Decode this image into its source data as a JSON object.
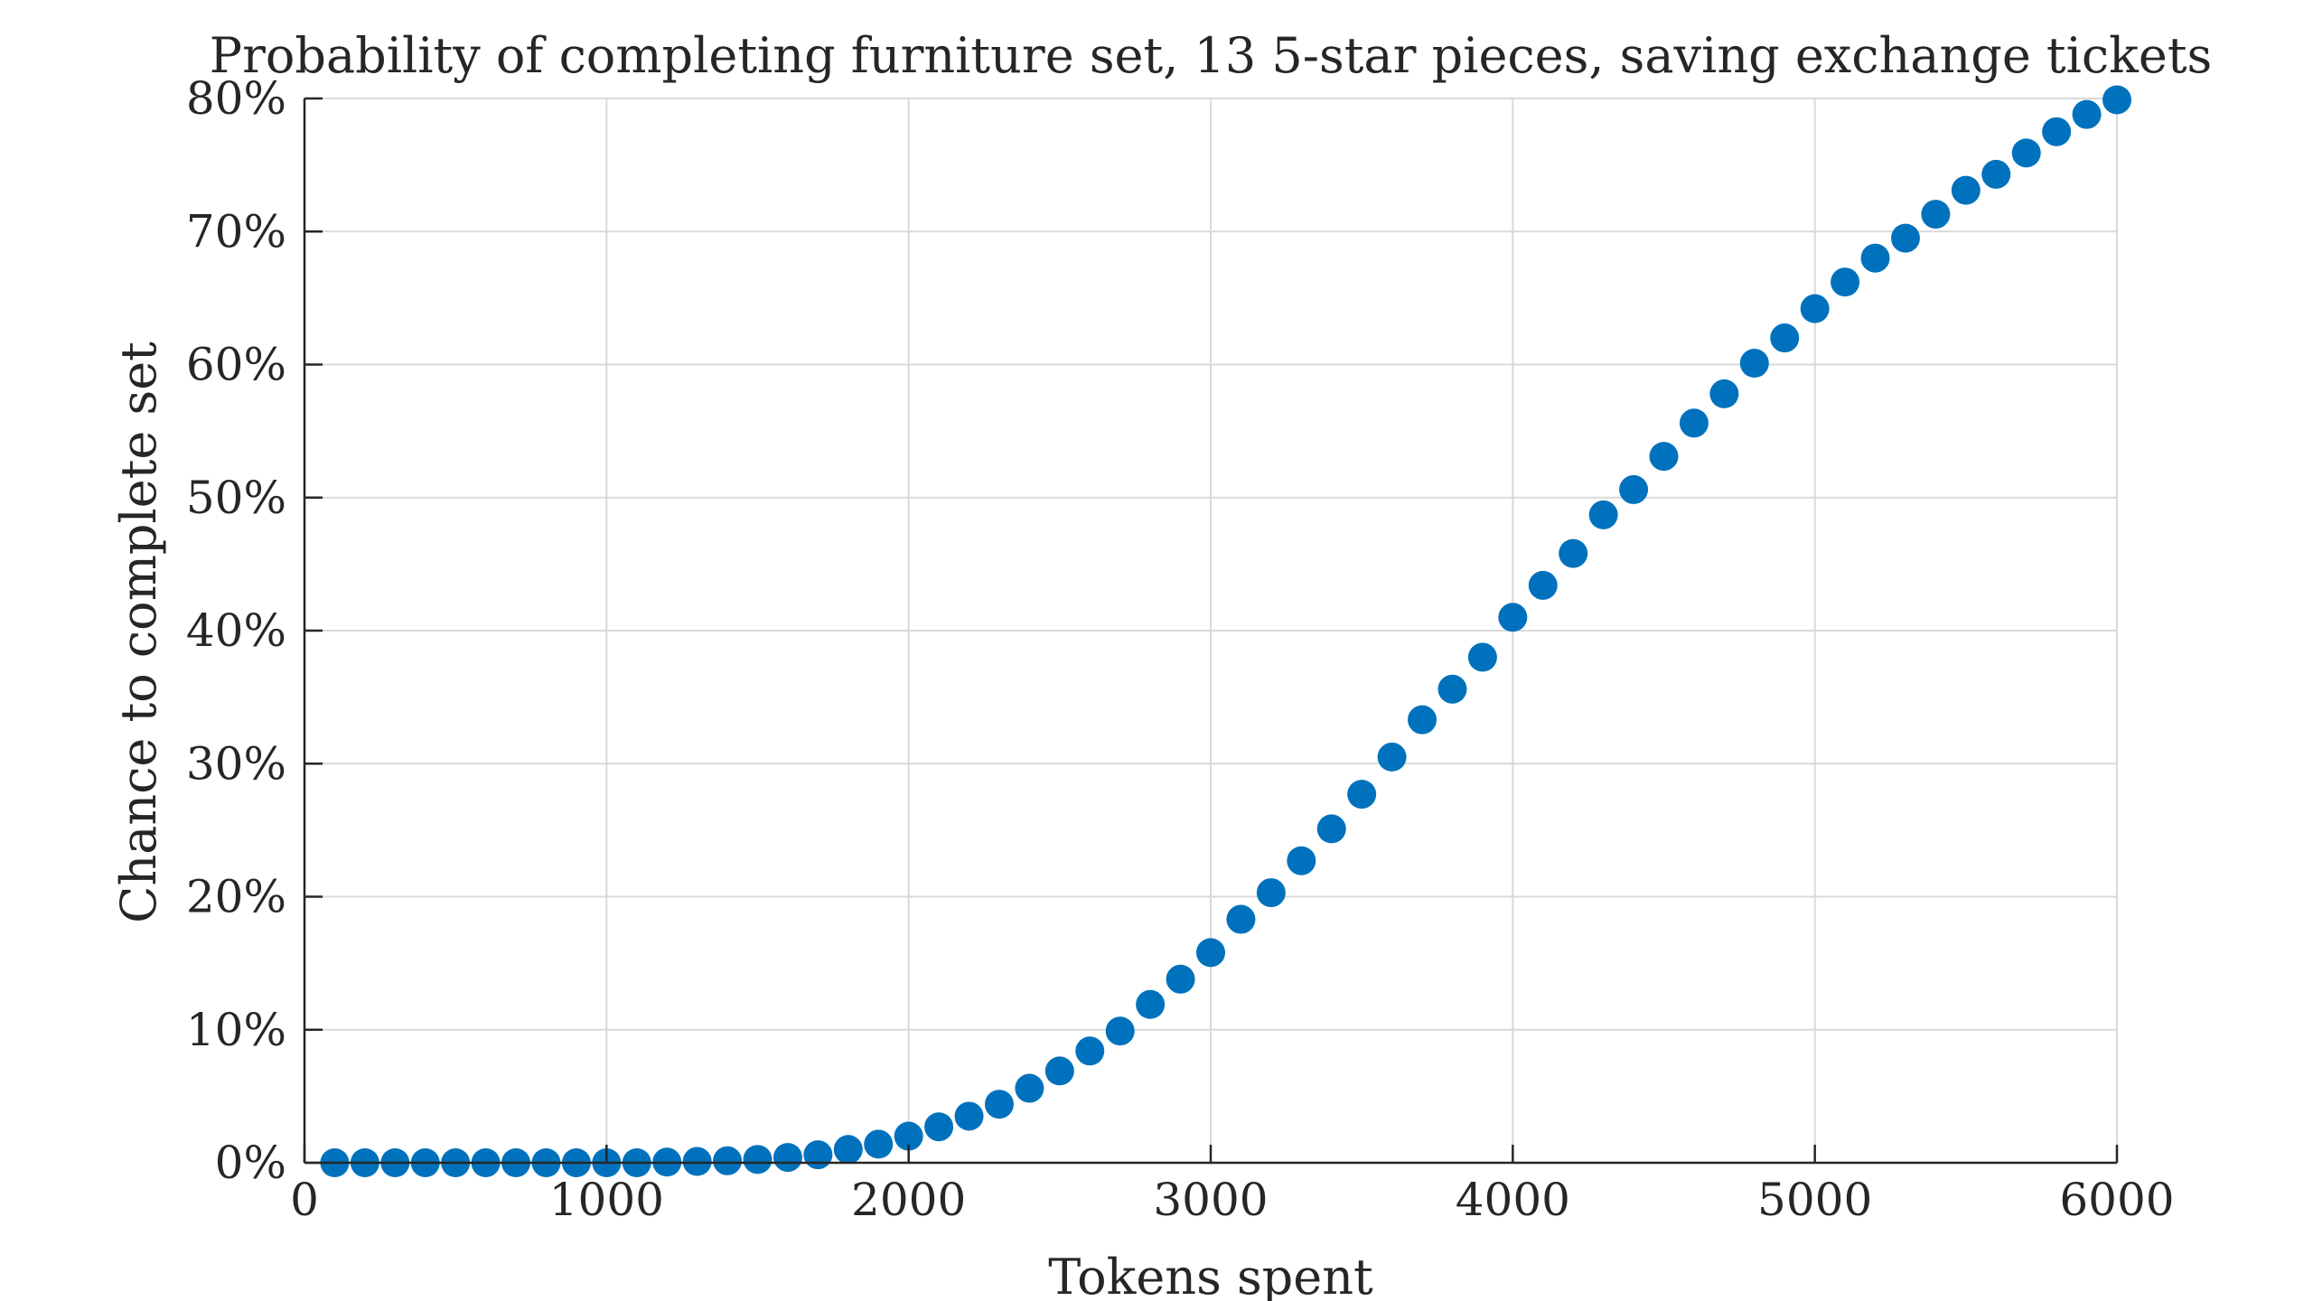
{
  "chart_data": {
    "type": "scatter",
    "title": "Probability of completing furniture set, 13 5-star pieces, saving exchange tickets",
    "xlabel": "Tokens spent",
    "ylabel": "Chance to complete set",
    "xlim": [
      0,
      6000
    ],
    "ylim": [
      0,
      80
    ],
    "xticks": [
      0,
      1000,
      2000,
      3000,
      4000,
      5000,
      6000
    ],
    "xtick_labels": [
      "0",
      "1000",
      "2000",
      "3000",
      "4000",
      "5000",
      "6000"
    ],
    "yticks": [
      0,
      10,
      20,
      30,
      40,
      50,
      60,
      70,
      80
    ],
    "ytick_labels": [
      "0%",
      "10%",
      "20%",
      "30%",
      "40%",
      "50%",
      "60%",
      "70%",
      "80%"
    ],
    "grid": true,
    "marker_color": "#0072BD",
    "x": [
      100,
      200,
      300,
      400,
      500,
      600,
      700,
      800,
      900,
      1000,
      1100,
      1200,
      1300,
      1400,
      1500,
      1600,
      1700,
      1800,
      1900,
      2000,
      2100,
      2200,
      2300,
      2400,
      2500,
      2600,
      2700,
      2800,
      2900,
      3000,
      3100,
      3200,
      3300,
      3400,
      3500,
      3600,
      3700,
      3800,
      3900,
      4000,
      4100,
      4200,
      4300,
      4400,
      4500,
      4600,
      4700,
      4800,
      4900,
      5000,
      5100,
      5200,
      5300,
      5400,
      5500,
      5600,
      5700,
      5800,
      5900,
      6000
    ],
    "y": [
      0,
      0,
      0,
      0,
      0,
      0,
      0,
      0,
      0,
      0,
      0,
      0.05,
      0.1,
      0.15,
      0.25,
      0.4,
      0.6,
      1.0,
      1.4,
      2.0,
      2.7,
      3.5,
      4.4,
      5.6,
      6.9,
      8.4,
      9.9,
      11.9,
      13.8,
      15.8,
      18.3,
      20.3,
      22.7,
      25.1,
      27.7,
      30.5,
      33.3,
      35.6,
      38.0,
      41.0,
      43.4,
      45.8,
      48.7,
      50.6,
      53.1,
      55.6,
      57.8,
      60.1,
      62.0,
      64.2,
      66.2,
      68.0,
      69.5,
      71.3,
      73.1,
      74.3,
      75.9,
      77.5,
      78.8,
      79.9
    ]
  }
}
